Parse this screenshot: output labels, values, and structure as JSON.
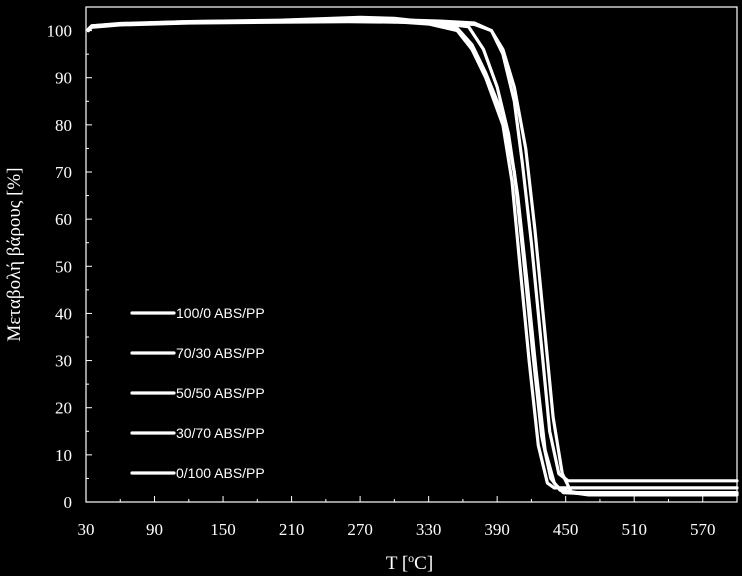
{
  "chart_data": {
    "type": "line",
    "xlabel": "T [",
    "xlabel_sup": "o",
    "xlabel_unit": "C]",
    "ylabel": "Μεταβολή βάρους [%]",
    "xlim": [
      30,
      600
    ],
    "ylim": [
      0,
      105
    ],
    "xticks": [
      30,
      90,
      150,
      210,
      270,
      330,
      390,
      450,
      510,
      570
    ],
    "yticks": [
      0,
      10,
      20,
      30,
      40,
      50,
      60,
      70,
      80,
      90,
      100
    ],
    "grid": false,
    "legend_position": "bottom-left",
    "colors": {
      "background": "#000000",
      "series": "#ffffff"
    },
    "series": [
      {
        "name": "100/0 ABS/PP",
        "points": [
          [
            32,
            100.2
          ],
          [
            35,
            101.0
          ],
          [
            60,
            101.4
          ],
          [
            120,
            101.9
          ],
          [
            200,
            102.1
          ],
          [
            260,
            102.2
          ],
          [
            300,
            102.3
          ],
          [
            340,
            102.0
          ],
          [
            370,
            101.6
          ],
          [
            385,
            100.0
          ],
          [
            395,
            95.0
          ],
          [
            405,
            85.0
          ],
          [
            412,
            72.0
          ],
          [
            420,
            55.0
          ],
          [
            428,
            35.0
          ],
          [
            436,
            15.0
          ],
          [
            444,
            6.0
          ],
          [
            452,
            4.5
          ],
          [
            465,
            4.5
          ],
          [
            600,
            4.5
          ]
        ]
      },
      {
        "name": "70/30 ABS/PP",
        "points": [
          [
            32,
            100.0
          ],
          [
            35,
            100.8
          ],
          [
            60,
            101.3
          ],
          [
            120,
            101.7
          ],
          [
            200,
            102.0
          ],
          [
            270,
            102.2
          ],
          [
            300,
            101.9
          ],
          [
            330,
            101.4
          ],
          [
            355,
            100.0
          ],
          [
            368,
            96.0
          ],
          [
            380,
            90.0
          ],
          [
            395,
            80.0
          ],
          [
            403,
            68.0
          ],
          [
            410,
            50.0
          ],
          [
            418,
            30.0
          ],
          [
            426,
            12.0
          ],
          [
            434,
            4.0
          ],
          [
            440,
            3.0
          ],
          [
            460,
            3.0
          ],
          [
            600,
            3.0
          ]
        ]
      },
      {
        "name": "50/50 ABS/PP",
        "points": [
          [
            32,
            100.3
          ],
          [
            35,
            101.0
          ],
          [
            60,
            101.5
          ],
          [
            120,
            101.9
          ],
          [
            200,
            102.2
          ],
          [
            270,
            102.8
          ],
          [
            300,
            102.6
          ],
          [
            330,
            101.8
          ],
          [
            355,
            100.5
          ],
          [
            368,
            97.0
          ],
          [
            380,
            91.0
          ],
          [
            395,
            82.0
          ],
          [
            405,
            70.0
          ],
          [
            413,
            52.0
          ],
          [
            421,
            32.0
          ],
          [
            429,
            14.0
          ],
          [
            437,
            5.0
          ],
          [
            445,
            2.5
          ],
          [
            460,
            2.0
          ],
          [
            600,
            2.0
          ]
        ]
      },
      {
        "name": "30/70 ABS/PP",
        "points": [
          [
            32,
            100.1
          ],
          [
            35,
            100.9
          ],
          [
            60,
            101.4
          ],
          [
            120,
            101.8
          ],
          [
            200,
            102.1
          ],
          [
            270,
            102.5
          ],
          [
            300,
            102.4
          ],
          [
            340,
            101.6
          ],
          [
            365,
            100.8
          ],
          [
            378,
            96.0
          ],
          [
            390,
            88.0
          ],
          [
            400,
            78.0
          ],
          [
            408,
            65.0
          ],
          [
            416,
            47.0
          ],
          [
            424,
            28.0
          ],
          [
            432,
            11.0
          ],
          [
            440,
            4.0
          ],
          [
            448,
            2.0
          ],
          [
            465,
            1.8
          ],
          [
            600,
            1.8
          ]
        ]
      },
      {
        "name": "0/100 ABS/PP",
        "points": [
          [
            32,
            100.0
          ],
          [
            35,
            100.7
          ],
          [
            60,
            101.2
          ],
          [
            120,
            101.6
          ],
          [
            200,
            101.8
          ],
          [
            260,
            101.9
          ],
          [
            300,
            101.8
          ],
          [
            340,
            101.7
          ],
          [
            370,
            101.3
          ],
          [
            385,
            100.0
          ],
          [
            395,
            96.0
          ],
          [
            405,
            88.0
          ],
          [
            415,
            75.0
          ],
          [
            423,
            58.0
          ],
          [
            431,
            38.0
          ],
          [
            439,
            18.0
          ],
          [
            447,
            6.0
          ],
          [
            455,
            2.0
          ],
          [
            470,
            1.5
          ],
          [
            600,
            1.5
          ]
        ]
      }
    ]
  }
}
